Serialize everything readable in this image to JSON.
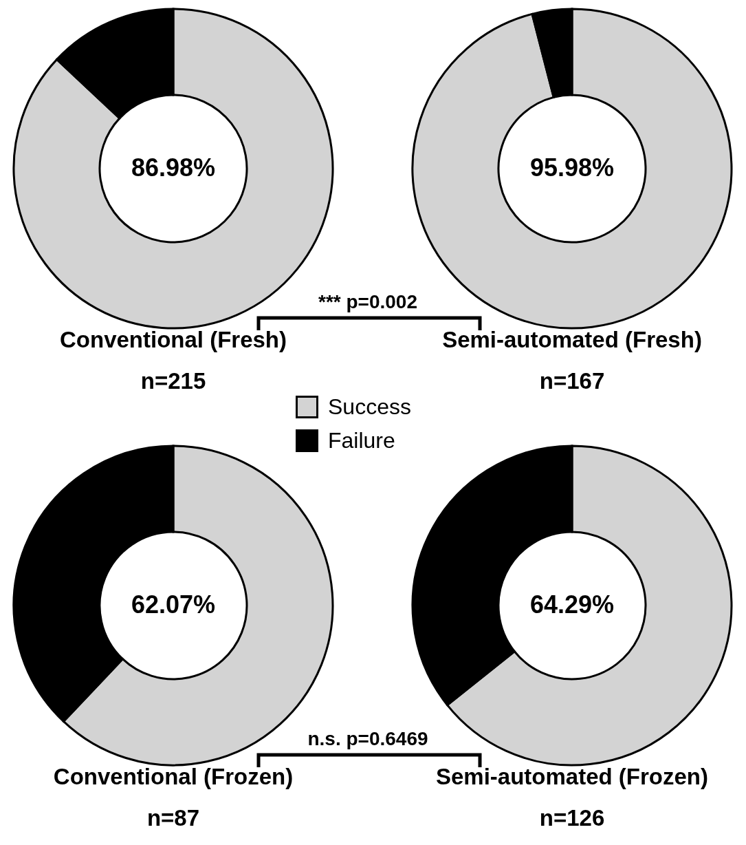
{
  "chart_data": [
    {
      "type": "donut",
      "title": "Conventional (Fresh)",
      "subtitle": "n=215",
      "categories": [
        "Success",
        "Failure"
      ],
      "values": [
        86.98,
        13.02
      ],
      "colors": [
        "#d3d3d3",
        "#000000"
      ],
      "value_labels": [
        "86.98%",
        null
      ],
      "legend": "bottom right",
      "annotations": [
        "*** p=0.002"
      ]
    },
    {
      "type": "donut",
      "title": "Semi-automated (Fresh)",
      "subtitle": "n=167",
      "categories": [
        null,
        null
      ],
      "values": [
        95.98,
        4.02
      ],
      "colors": [
        "#d3d3d3",
        "#000000"
      ],
      "value_labels": [
        "95.98%",
        null
      ]
    },
    {
      "type": "donut",
      "title": "Conventional (Frozen)",
      "subtitle": "n=87",
      "categories": [
        null,
        null
      ],
      "values": [
        62.07,
        37.93
      ],
      "colors": [
        "#d3d3d3",
        "#000000"
      ],
      "value_labels": [
        "62.07%",
        null
      ],
      "annotations": [
        "n.s. p=0.6469"
      ]
    },
    {
      "type": "donut",
      "title": "Semi-automated (Frozen)",
      "subtitle": "n=126",
      "categories": [
        null,
        null
      ],
      "values": [
        64.29,
        35.71
      ],
      "colors": [
        "#d3d3d3",
        "#000000"
      ],
      "value_labels": [
        "64.29%",
        null
      ]
    }
  ]
}
